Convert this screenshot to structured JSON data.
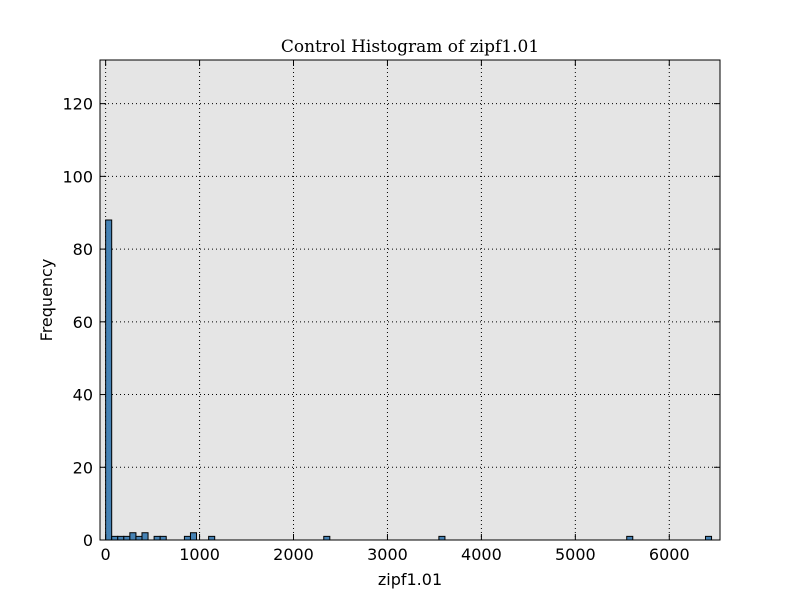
{
  "chart_data": {
    "type": "bar",
    "title": "Control Histogram of zipf1.01",
    "xlabel": "zipf1.01",
    "ylabel": "Frequency",
    "xlim": [
      -60,
      6540
    ],
    "ylim": [
      0,
      132
    ],
    "bin_width": 64.5,
    "xticks": [
      0,
      1000,
      2000,
      3000,
      4000,
      5000,
      6000
    ],
    "yticks": [
      0,
      20,
      40,
      60,
      80,
      100,
      120
    ],
    "grid": true,
    "plot_background": "#e5e5e5",
    "bar_color": "#4682b4",
    "bar_edge_color": "#000000",
    "bins": [
      {
        "x": 0,
        "count": 88
      },
      {
        "x": 64.5,
        "count": 1
      },
      {
        "x": 129,
        "count": 1
      },
      {
        "x": 193.5,
        "count": 1
      },
      {
        "x": 258,
        "count": 2
      },
      {
        "x": 322.5,
        "count": 1
      },
      {
        "x": 387,
        "count": 2
      },
      {
        "x": 516,
        "count": 1
      },
      {
        "x": 580.5,
        "count": 1
      },
      {
        "x": 838.5,
        "count": 1
      },
      {
        "x": 903,
        "count": 2
      },
      {
        "x": 1096.5,
        "count": 1
      },
      {
        "x": 2322,
        "count": 1
      },
      {
        "x": 3547.5,
        "count": 1
      },
      {
        "x": 5547,
        "count": 1
      },
      {
        "x": 6385.5,
        "count": 1
      }
    ]
  }
}
